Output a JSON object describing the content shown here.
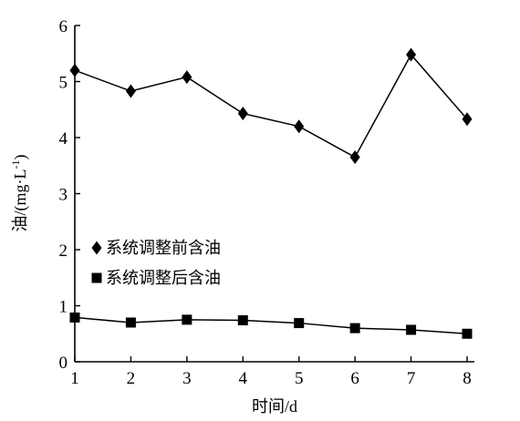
{
  "chart_data": {
    "type": "line",
    "title": "",
    "xlabel": "时间/d",
    "ylabel": "油/(mg·L",
    "ylabel_sup": "-1",
    "ylabel_close": ")",
    "x": [
      1,
      2,
      3,
      4,
      5,
      6,
      7,
      8
    ],
    "xlim": [
      1,
      8
    ],
    "ylim": [
      0,
      6
    ],
    "yticks": [
      0,
      1,
      2,
      3,
      4,
      5,
      6
    ],
    "grid": false,
    "legend_position": "left-middle",
    "series": [
      {
        "name": "系统调整前含油",
        "marker": "diamond",
        "color": "#000000",
        "values": [
          5.2,
          4.83,
          5.08,
          4.43,
          4.2,
          3.65,
          5.48,
          4.33
        ]
      },
      {
        "name": "系统调整后含油",
        "marker": "square",
        "color": "#000000",
        "values": [
          0.79,
          0.7,
          0.75,
          0.74,
          0.69,
          0.6,
          0.57,
          0.5
        ]
      }
    ]
  }
}
